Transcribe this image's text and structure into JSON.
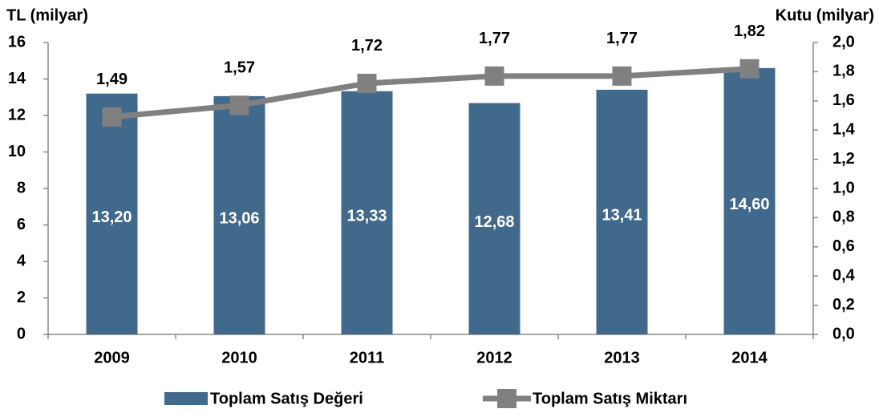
{
  "chart_data": {
    "type": "bar",
    "y_label": "TL (milyar)",
    "y2_label": "Kutu (milyar)",
    "categories": [
      "2009",
      "2010",
      "2011",
      "2012",
      "2013",
      "2014"
    ],
    "series": [
      {
        "name": "Toplam Satış Değeri",
        "type": "bar",
        "color": "#41698c",
        "values": [
          13.2,
          13.06,
          13.33,
          12.68,
          13.41,
          14.6
        ],
        "value_labels": [
          "13,20",
          "13,06",
          "13,33",
          "12,68",
          "13,41",
          "14,60"
        ]
      },
      {
        "name": "Toplam Satış Miktarı",
        "type": "line",
        "axis": "y2",
        "color": "#808080",
        "values": [
          1.49,
          1.57,
          1.72,
          1.77,
          1.77,
          1.82
        ],
        "value_labels": [
          "1,49",
          "1,57",
          "1,72",
          "1,77",
          "1,77",
          "1,82"
        ]
      }
    ],
    "ylim": [
      0,
      16
    ],
    "yticks": [
      0,
      2,
      4,
      6,
      8,
      10,
      12,
      14,
      16
    ],
    "y2lim": [
      0,
      2.0
    ],
    "y2ticks": [
      {
        "value": 0,
        "label": "0,0"
      },
      {
        "value": 0.2,
        "label": "0,2"
      },
      {
        "value": 0.4,
        "label": "0,4"
      },
      {
        "value": 0.6,
        "label": "0,6"
      },
      {
        "value": 0.8,
        "label": "0,8"
      },
      {
        "value": 1.0,
        "label": "1,0"
      },
      {
        "value": 1.2,
        "label": "1,2"
      },
      {
        "value": 1.4,
        "label": "1,4"
      },
      {
        "value": 1.6,
        "label": "1,6"
      },
      {
        "value": 1.8,
        "label": "1,8"
      },
      {
        "value": 2.0,
        "label": "2,0"
      }
    ],
    "grid": false,
    "legend": "bottom"
  }
}
